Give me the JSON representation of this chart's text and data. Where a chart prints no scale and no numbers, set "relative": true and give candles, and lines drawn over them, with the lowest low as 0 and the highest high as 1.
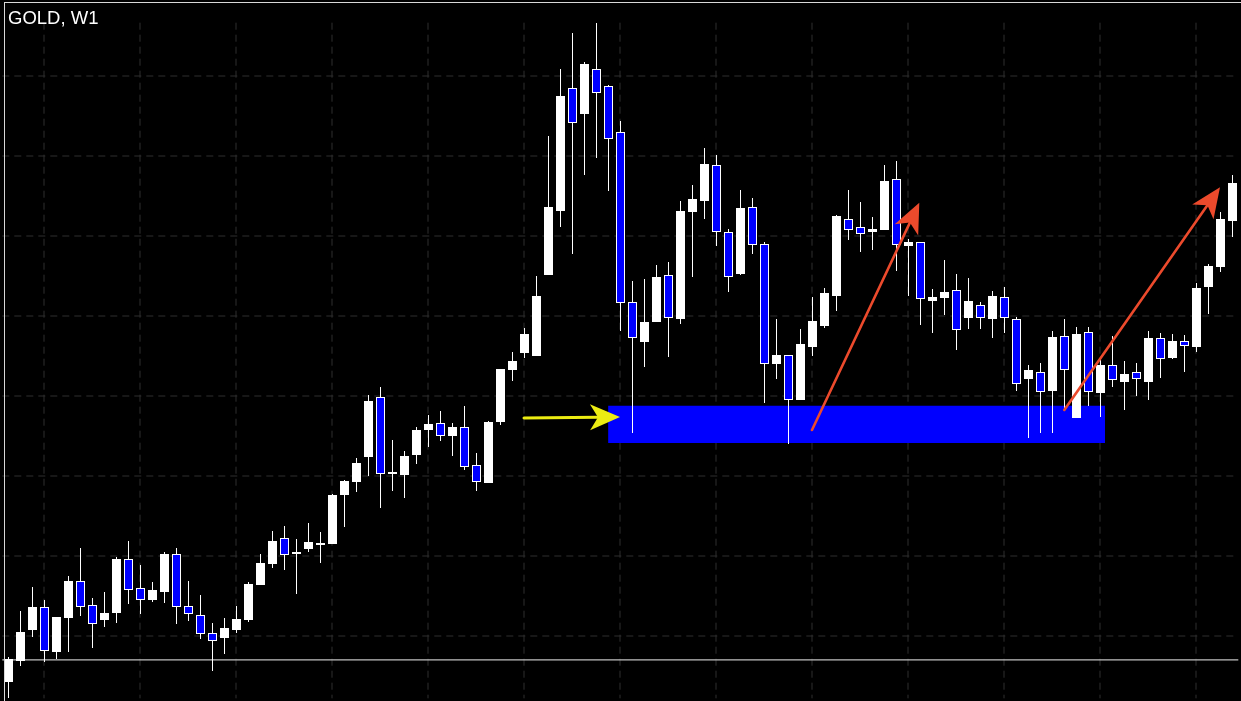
{
  "chart_data": {
    "type": "candlestick",
    "title": "GOLD, W1",
    "relative": true,
    "tick_labels": false,
    "grid": true,
    "color": "#ffffff",
    "categories": [
      null,
      null,
      null,
      null,
      null,
      null,
      null,
      null,
      null,
      null,
      null,
      null,
      null,
      null,
      null,
      null,
      null,
      null,
      null,
      null,
      null,
      null,
      null,
      null,
      null,
      null,
      null,
      null,
      null,
      null,
      null,
      null,
      null,
      null,
      null,
      null,
      null,
      null,
      null,
      null,
      null,
      null,
      null,
      null,
      null,
      null,
      null,
      null,
      null,
      null,
      null,
      null,
      null,
      null,
      null,
      null,
      null,
      null,
      null,
      null,
      null,
      null,
      null,
      null,
      null,
      null,
      null,
      null,
      null,
      null,
      null,
      null,
      null,
      null,
      null,
      null,
      null,
      null,
      null,
      null,
      null,
      null,
      null,
      null,
      null,
      null,
      null,
      null,
      null,
      null,
      null,
      null,
      null,
      null,
      null,
      null,
      null,
      null,
      null,
      null,
      null,
      null,
      null
    ],
    "ohlc": [
      [
        0.025,
        0.061,
        0,
        0.058
      ],
      [
        0.056,
        0.129,
        0.048,
        0.098
      ],
      [
        0.103,
        0.165,
        0.091,
        0.135
      ],
      [
        0.135,
        0.146,
        0.053,
        0.072
      ],
      [
        0.07,
        0.12,
        0.058,
        0.12
      ],
      [
        0.121,
        0.181,
        0.069,
        0.174
      ],
      [
        0.173,
        0.222,
        0.122,
        0.136
      ],
      [
        0.138,
        0.148,
        0.075,
        0.112
      ],
      [
        0.117,
        0.157,
        0.105,
        0.126
      ],
      [
        0.128,
        0.209,
        0.112,
        0.206
      ],
      [
        0.206,
        0.233,
        0.14,
        0.162
      ],
      [
        0.163,
        0.197,
        0.125,
        0.147
      ],
      [
        0.147,
        0.172,
        0.142,
        0.16
      ],
      [
        0.159,
        0.216,
        0.141,
        0.214
      ],
      [
        0.213,
        0.222,
        0.11,
        0.137
      ],
      [
        0.136,
        0.174,
        0.114,
        0.126
      ],
      [
        0.124,
        0.153,
        0.088,
        0.096
      ],
      [
        0.096,
        0.111,
        0.041,
        0.086
      ],
      [
        0.09,
        0.119,
        0.065,
        0.104
      ],
      [
        0.103,
        0.136,
        0.097,
        0.117
      ],
      [
        0.117,
        0.172,
        0.113,
        0.169
      ],
      [
        0.169,
        0.214,
        0.169,
        0.201
      ],
      [
        0.201,
        0.248,
        0.193,
        0.233
      ],
      [
        0.238,
        0.255,
        0.19,
        0.213
      ],
      [
        0.215,
        0.236,
        0.154,
        0.217
      ],
      [
        0.222,
        0.259,
        0.216,
        0.231
      ],
      [
        0.229,
        0.246,
        0.2,
        0.23
      ],
      [
        0.23,
        0.302,
        0.23,
        0.301
      ],
      [
        0.302,
        0.323,
        0.254,
        0.321
      ],
      [
        0.321,
        0.356,
        0.305,
        0.348
      ],
      [
        0.359,
        0.449,
        0.329,
        0.44
      ],
      [
        0.446,
        0.461,
        0.282,
        0.334
      ],
      [
        0.333,
        0.382,
        0.307,
        0.335
      ],
      [
        0.332,
        0.366,
        0.297,
        0.359
      ],
      [
        0.361,
        0.401,
        0.347,
        0.397
      ],
      [
        0.399,
        0.419,
        0.372,
        0.406
      ],
      [
        0.407,
        0.425,
        0.381,
        0.39
      ],
      [
        0.39,
        0.408,
        0.359,
        0.402
      ],
      [
        0.401,
        0.433,
        0.338,
        0.344
      ],
      [
        0.345,
        0.363,
        0.307,
        0.322
      ],
      [
        0.32,
        0.411,
        0.319,
        0.409
      ],
      [
        0.41,
        0.487,
        0.405,
        0.487
      ],
      [
        0.488,
        0.513,
        0.469,
        0.499
      ],
      [
        0.512,
        0.548,
        0.503,
        0.539
      ],
      [
        0.508,
        0.625,
        0.508,
        0.595
      ],
      [
        0.628,
        0.832,
        0.627,
        0.727
      ],
      [
        0.723,
        0.931,
        0.698,
        0.891
      ],
      [
        0.904,
        0.985,
        0.658,
        0.853
      ],
      [
        0.866,
        0.942,
        0.774,
        0.939
      ],
      [
        0.931,
        1,
        0.799,
        0.897
      ],
      [
        0.906,
        0.908,
        0.751,
        0.829
      ],
      [
        0.838,
        0.854,
        0.543,
        0.586
      ],
      [
        0.586,
        0.618,
        0.393,
        0.535
      ],
      [
        0.529,
        0.621,
        0.491,
        0.557
      ],
      [
        0.558,
        0.641,
        0.557,
        0.624
      ],
      [
        0.626,
        0.646,
        0.505,
        0.564
      ],
      [
        0.563,
        0.736,
        0.554,
        0.721
      ],
      [
        0.722,
        0.76,
        0.624,
        0.739
      ],
      [
        0.738,
        0.815,
        0.71,
        0.791
      ],
      [
        0.79,
        0.804,
        0.67,
        0.691
      ],
      [
        0.69,
        0.694,
        0.602,
        0.625
      ],
      [
        0.63,
        0.752,
        0.627,
        0.726
      ],
      [
        0.727,
        0.74,
        0.657,
        0.672
      ],
      [
        0.673,
        0.676,
        0.437,
        0.496
      ],
      [
        0.497,
        0.562,
        0.472,
        0.508
      ],
      [
        0.508,
        0.508,
        0.377,
        0.443
      ],
      [
        0.443,
        0.546,
        0.443,
        0.524
      ],
      [
        0.522,
        0.594,
        0.506,
        0.558
      ],
      [
        0.552,
        0.607,
        0.548,
        0.6
      ],
      [
        0.597,
        0.715,
        0.574,
        0.714
      ],
      [
        0.71,
        0.752,
        0.679,
        0.694
      ],
      [
        0.697,
        0.735,
        0.661,
        0.688
      ],
      [
        0.691,
        0.712,
        0.663,
        0.694
      ],
      [
        0.695,
        0.79,
        0.695,
        0.766
      ],
      [
        0.769,
        0.795,
        0.633,
        0.673
      ],
      [
        0.671,
        0.68,
        0.596,
        0.675
      ],
      [
        0.675,
        0.675,
        0.552,
        0.592
      ],
      [
        0.59,
        0.606,
        0.541,
        0.594
      ],
      [
        0.594,
        0.649,
        0.568,
        0.602
      ],
      [
        0.605,
        0.628,
        0.516,
        0.546
      ],
      [
        0.565,
        0.622,
        0.547,
        0.588
      ],
      [
        0.582,
        0.587,
        0.546,
        0.565
      ],
      [
        0.563,
        0.603,
        0.534,
        0.595
      ],
      [
        0.594,
        0.609,
        0.54,
        0.564
      ],
      [
        0.562,
        0.564,
        0.455,
        0.466
      ],
      [
        0.474,
        0.493,
        0.385,
        0.486
      ],
      [
        0.483,
        0.496,
        0.393,
        0.455
      ],
      [
        0.456,
        0.544,
        0.392,
        0.535
      ],
      [
        0.536,
        0.561,
        0.43,
        0.487
      ],
      [
        0.416,
        0.55,
        0.416,
        0.539
      ],
      [
        0.542,
        0.549,
        0.433,
        0.455
      ],
      [
        0.454,
        0.504,
        0.416,
        0.493
      ],
      [
        0.494,
        0.536,
        0.461,
        0.472
      ],
      [
        0.47,
        0.499,
        0.427,
        0.48
      ],
      [
        0.483,
        0.496,
        0.448,
        0.474
      ],
      [
        0.469,
        0.544,
        0.441,
        0.533
      ],
      [
        0.533,
        0.541,
        0.474,
        0.503
      ],
      [
        0.505,
        0.539,
        0.502,
        0.529
      ],
      [
        0.529,
        0.538,
        0.483,
        0.523
      ],
      [
        0.522,
        0.614,
        0.513,
        0.607
      ],
      [
        0.611,
        0.643,
        0.569,
        0.64
      ],
      [
        0.64,
        0.72,
        0.631,
        0.709
      ],
      [
        0.708,
        0.775,
        0.683,
        0.763
      ]
    ],
    "colors": [
      "#ffffff",
      "#ffffff",
      "#ffffff",
      "#0000ff",
      "#ffffff",
      "#ffffff",
      "#0000ff",
      "#0000ff",
      "#ffffff",
      "#ffffff",
      "#0000ff",
      "#0000ff",
      "#ffffff",
      "#ffffff",
      "#0000ff",
      "#0000ff",
      "#0000ff",
      "#0000ff",
      "#ffffff",
      "#ffffff",
      "#ffffff",
      "#ffffff",
      "#ffffff",
      "#0000ff",
      "#ffffff",
      "#ffffff",
      "#ffffff",
      "#ffffff",
      "#ffffff",
      "#ffffff",
      "#ffffff",
      "#0000ff",
      "#ffffff",
      "#ffffff",
      "#ffffff",
      "#ffffff",
      "#0000ff",
      "#ffffff",
      "#0000ff",
      "#0000ff",
      "#ffffff",
      "#ffffff",
      "#ffffff",
      "#ffffff",
      "#ffffff",
      "#ffffff",
      "#ffffff",
      "#0000ff",
      "#ffffff",
      "#0000ff",
      "#0000ff",
      "#0000ff",
      "#0000ff",
      "#ffffff",
      "#ffffff",
      "#0000ff",
      "#ffffff",
      "#ffffff",
      "#ffffff",
      "#0000ff",
      "#0000ff",
      "#ffffff",
      "#0000ff",
      "#0000ff",
      "#ffffff",
      "#0000ff",
      "#ffffff",
      "#ffffff",
      "#ffffff",
      "#ffffff",
      "#0000ff",
      "#0000ff",
      "#ffffff",
      "#ffffff",
      "#0000ff",
      "#ffffff",
      "#0000ff",
      "#ffffff",
      "#ffffff",
      "#0000ff",
      "#ffffff",
      "#0000ff",
      "#ffffff",
      "#0000ff",
      "#0000ff",
      "#ffffff",
      "#0000ff",
      "#ffffff",
      "#0000ff",
      "#ffffff",
      "#0000ff",
      "#ffffff",
      "#0000ff",
      "#ffffff",
      "#0000ff",
      "#ffffff",
      "#0000ff",
      "#ffffff",
      "#0000ff",
      "#ffffff",
      "#ffffff",
      "#ffffff",
      "#ffffff"
    ],
    "ref_lines": [
      {
        "axis": "y",
        "value": 0.057,
        "color": "#c0c0c0"
      }
    ],
    "bands": [
      {
        "axis": "y",
        "from": 0.378,
        "to": 0.433,
        "color": "#0000ff"
      }
    ]
  }
}
